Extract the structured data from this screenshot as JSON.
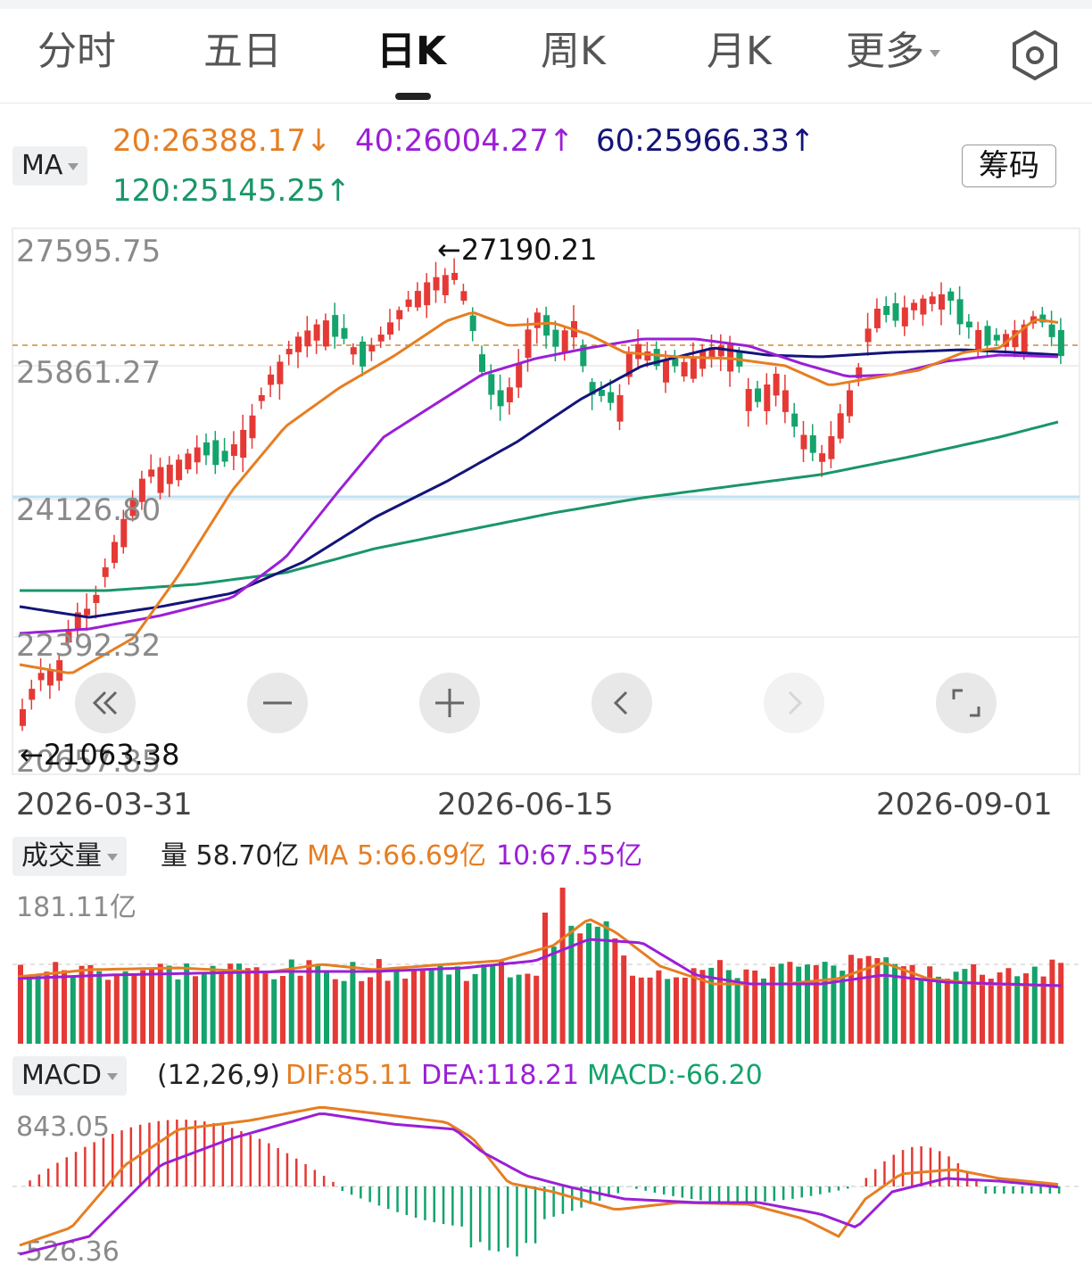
{
  "tabs": [
    {
      "label": "分时",
      "active": false
    },
    {
      "label": "五日",
      "active": false
    },
    {
      "label": "日K",
      "active": true
    },
    {
      "label": "周K",
      "active": false
    },
    {
      "label": "月K",
      "active": false
    },
    {
      "label": "更多",
      "active": false
    }
  ],
  "settings_icon": "hexagon-settings-icon",
  "ma_header": {
    "selector": "MA",
    "items": [
      {
        "text": "20:26388.17↓",
        "color": "#e67e22"
      },
      {
        "text": "40:26004.27↑",
        "color": "#9b1fd6"
      },
      {
        "text": "60:25966.33↑",
        "color": "#14147a"
      },
      {
        "text": "120:25145.25↑",
        "color": "#1a9668"
      }
    ],
    "chips_button": "筹码"
  },
  "price_axis": {
    "labels": [
      "27595.75",
      "25861.27",
      "24126.80",
      "22392.32",
      "20657.85"
    ],
    "high_marker": "←27190.21",
    "low_marker": "←21063.38"
  },
  "controls": [
    "fast-back-icon",
    "zoom-out-icon",
    "zoom-in-icon",
    "prev-icon",
    "next-icon",
    "fullscreen-icon"
  ],
  "dates": [
    "2026-03-31",
    "2026-06-15",
    "2026-09-01"
  ],
  "volume_header": {
    "selector": "成交量",
    "vol": "量 58.70亿",
    "ma5": "MA 5:66.69亿",
    "ma10": "10:67.55亿",
    "axis_max": "181.11亿"
  },
  "macd_header": {
    "selector": "MACD",
    "params": "(12,26,9)",
    "dif": "DIF:85.11",
    "dea": "DEA:118.21",
    "macd": "MACD:-66.20",
    "axis_max": "843.05",
    "axis_min": "-526.36"
  },
  "colors": {
    "up": "#e53935",
    "down": "#13a36b",
    "ma20": "#e67e22",
    "ma40": "#9b1fd6",
    "ma60": "#14147a",
    "ma120": "#1a9668"
  },
  "chart_data": {
    "type": "candlestick",
    "y_range": [
      20657.85,
      27595.75
    ],
    "high": 27190.21,
    "low": 21063.38,
    "x_labels": [
      "2026-03-31",
      "2026-06-15",
      "2026-09-01"
    ],
    "ma_latest": {
      "MA20": 26388.17,
      "MA40": 26004.27,
      "MA60": 25966.33,
      "MA120": 25145.25
    }
  }
}
